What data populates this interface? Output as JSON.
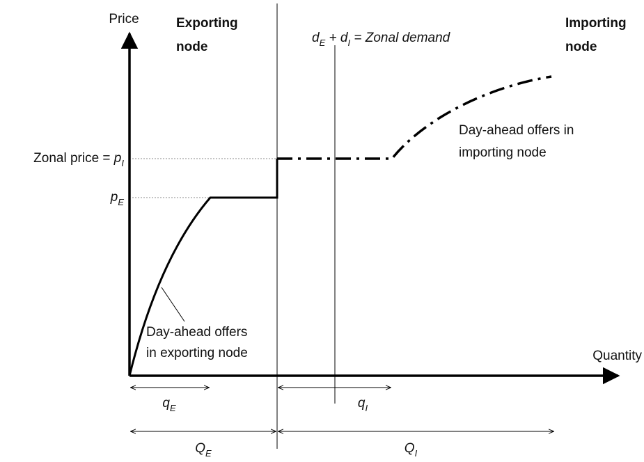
{
  "axes": {
    "y_label": "Price",
    "x_label": "Quantity"
  },
  "regions": {
    "exporting": [
      "Exporting",
      "node"
    ],
    "importing": [
      "Importing",
      "node"
    ]
  },
  "price_labels": {
    "zonal": [
      {
        "text": "Zonal price = "
      },
      {
        "text": "p",
        "italic": true
      },
      {
        "text": "I",
        "italic": true,
        "sub": true
      }
    ],
    "export": [
      {
        "text": "p",
        "italic": true
      },
      {
        "text": "E",
        "italic": true,
        "sub": true
      }
    ]
  },
  "demand_label": [
    {
      "text": "d",
      "italic": true
    },
    {
      "text": "E",
      "italic": true,
      "sub": true
    },
    {
      "text": " + d",
      "italic": true
    },
    {
      "text": "I",
      "italic": true,
      "sub": true
    },
    {
      "text": " = Zonal demand",
      "italic": true
    }
  ],
  "curve_labels": {
    "importing": [
      "Day-ahead offers in",
      "importing node"
    ],
    "exporting": [
      "Day-ahead offers",
      "in exporting node"
    ]
  },
  "quantities": {
    "qE": [
      {
        "text": "q",
        "italic": true
      },
      {
        "text": "E",
        "italic": true,
        "sub": true
      }
    ],
    "qI": [
      {
        "text": "q",
        "italic": true
      },
      {
        "text": "I",
        "italic": true,
        "sub": true
      }
    ],
    "QE": [
      {
        "text": "Q",
        "italic": true
      },
      {
        "text": "E",
        "italic": true,
        "sub": true
      }
    ],
    "QI": [
      {
        "text": "Q",
        "italic": true
      },
      {
        "text": "I",
        "italic": true,
        "sub": true
      }
    ]
  }
}
